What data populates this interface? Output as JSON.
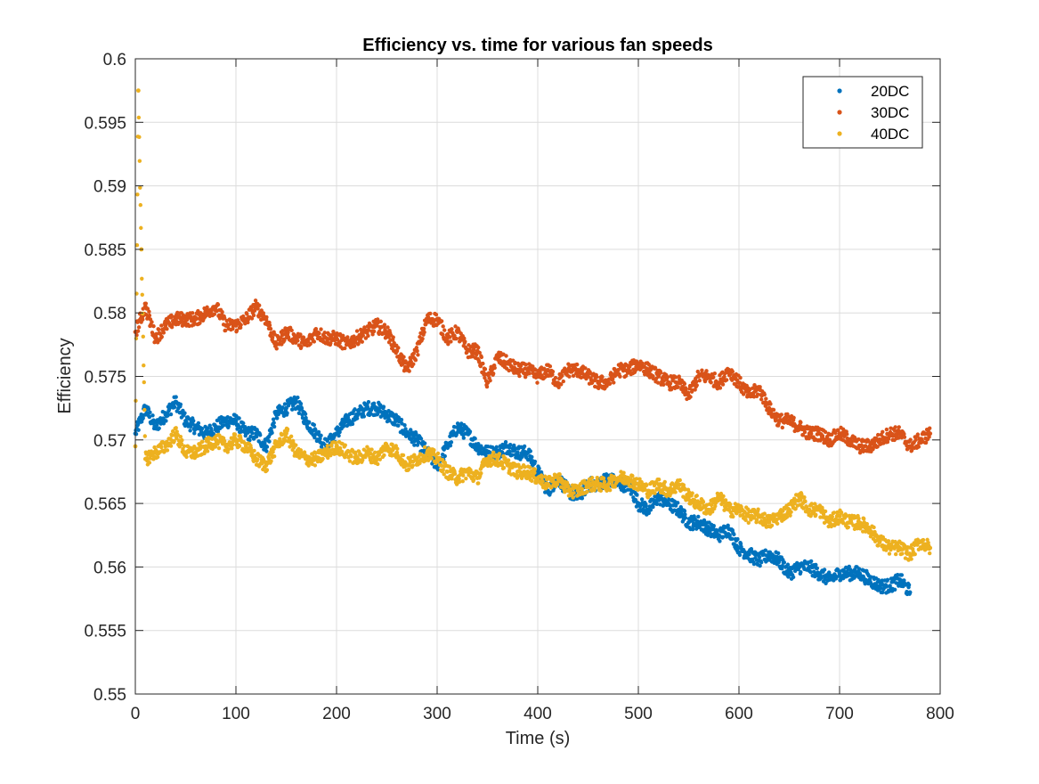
{
  "chart_data": {
    "type": "scatter",
    "title": "Efficiency vs. time for various fan speeds",
    "xlabel": "Time (s)",
    "ylabel": "Efficiency",
    "xlim": [
      0,
      800
    ],
    "ylim": [
      0.55,
      0.6
    ],
    "xticks": [
      0,
      100,
      200,
      300,
      400,
      500,
      600,
      700,
      800
    ],
    "yticks": [
      0.55,
      0.555,
      0.56,
      0.565,
      0.57,
      0.575,
      0.58,
      0.585,
      0.59,
      0.595,
      0.6
    ],
    "x_tick_labels": [
      "0",
      "100",
      "200",
      "300",
      "400",
      "500",
      "600",
      "700",
      "800"
    ],
    "y_tick_labels": [
      "0.55",
      "0.555",
      "0.56",
      "0.565",
      "0.57",
      "0.575",
      "0.58",
      "0.585",
      "0.59",
      "0.595",
      "0.6"
    ],
    "grid": true,
    "legend_position": "top-right",
    "series": [
      {
        "name": "20DC",
        "color": "#0072BD",
        "x": [
          0,
          10,
          20,
          30,
          40,
          50,
          60,
          70,
          80,
          90,
          100,
          110,
          120,
          130,
          140,
          150,
          160,
          170,
          180,
          190,
          200,
          210,
          220,
          230,
          240,
          250,
          260,
          270,
          280,
          290,
          300,
          310,
          320,
          330,
          340,
          350,
          360,
          370,
          380,
          390,
          400,
          410,
          420,
          430,
          440,
          450,
          460,
          470,
          480,
          490,
          500,
          510,
          520,
          530,
          540,
          550,
          560,
          570,
          580,
          590,
          600,
          610,
          620,
          630,
          640,
          650,
          660,
          670,
          680,
          690,
          700,
          710,
          720,
          730,
          740,
          750,
          760,
          770
        ],
        "y": [
          0.5705,
          0.5725,
          0.571,
          0.572,
          0.573,
          0.5715,
          0.571,
          0.5705,
          0.571,
          0.5715,
          0.5715,
          0.5705,
          0.5705,
          0.5695,
          0.572,
          0.5725,
          0.573,
          0.5715,
          0.5705,
          0.5695,
          0.5705,
          0.5715,
          0.572,
          0.5725,
          0.5725,
          0.572,
          0.5715,
          0.5705,
          0.57,
          0.569,
          0.568,
          0.5695,
          0.571,
          0.5705,
          0.5695,
          0.569,
          0.569,
          0.5695,
          0.569,
          0.569,
          0.5675,
          0.566,
          0.567,
          0.566,
          0.5655,
          0.5665,
          0.5665,
          0.567,
          0.5665,
          0.5665,
          0.565,
          0.5645,
          0.5655,
          0.565,
          0.5645,
          0.5635,
          0.5635,
          0.563,
          0.5625,
          0.563,
          0.5615,
          0.561,
          0.5605,
          0.561,
          0.5605,
          0.5595,
          0.56,
          0.56,
          0.5595,
          0.559,
          0.5595,
          0.5595,
          0.5595,
          0.559,
          0.5585,
          0.5585,
          0.559,
          0.558
        ]
      },
      {
        "name": "30DC",
        "color": "#D95319",
        "x": [
          0,
          10,
          20,
          30,
          40,
          50,
          60,
          70,
          80,
          90,
          100,
          110,
          120,
          130,
          140,
          150,
          160,
          170,
          180,
          190,
          200,
          210,
          220,
          230,
          240,
          250,
          260,
          270,
          280,
          290,
          300,
          310,
          320,
          330,
          340,
          350,
          360,
          370,
          380,
          390,
          400,
          410,
          420,
          430,
          440,
          450,
          460,
          470,
          480,
          490,
          500,
          510,
          520,
          530,
          540,
          550,
          560,
          570,
          580,
          590,
          600,
          610,
          620,
          630,
          640,
          650,
          660,
          670,
          680,
          690,
          700,
          710,
          720,
          730,
          740,
          750,
          760,
          770,
          780,
          790
        ],
        "y": [
          0.5785,
          0.5805,
          0.578,
          0.579,
          0.5795,
          0.5795,
          0.5795,
          0.58,
          0.5805,
          0.579,
          0.579,
          0.5795,
          0.5805,
          0.5795,
          0.5775,
          0.5785,
          0.578,
          0.5775,
          0.5785,
          0.578,
          0.578,
          0.5775,
          0.578,
          0.5785,
          0.579,
          0.5785,
          0.577,
          0.5755,
          0.577,
          0.5795,
          0.5795,
          0.578,
          0.5785,
          0.577,
          0.577,
          0.5745,
          0.5765,
          0.576,
          0.5755,
          0.5755,
          0.575,
          0.5755,
          0.5745,
          0.5755,
          0.5755,
          0.575,
          0.5745,
          0.5745,
          0.5755,
          0.5755,
          0.576,
          0.5755,
          0.575,
          0.5745,
          0.5745,
          0.5735,
          0.575,
          0.575,
          0.5745,
          0.5755,
          0.5745,
          0.5735,
          0.574,
          0.5725,
          0.5715,
          0.5715,
          0.571,
          0.5705,
          0.5705,
          0.57,
          0.5705,
          0.57,
          0.5695,
          0.5695,
          0.57,
          0.5705,
          0.5705,
          0.5695,
          0.57,
          0.5705
        ]
      },
      {
        "name": "40DC",
        "color": "#EDB120",
        "x": [
          0,
          3,
          6,
          10,
          20,
          30,
          40,
          50,
          60,
          70,
          80,
          90,
          100,
          110,
          120,
          130,
          140,
          150,
          160,
          170,
          180,
          190,
          200,
          210,
          220,
          230,
          240,
          250,
          260,
          270,
          280,
          290,
          300,
          310,
          320,
          330,
          340,
          350,
          360,
          370,
          380,
          390,
          400,
          410,
          420,
          430,
          440,
          450,
          460,
          470,
          480,
          490,
          500,
          510,
          520,
          530,
          540,
          550,
          560,
          570,
          580,
          590,
          600,
          610,
          620,
          630,
          640,
          650,
          660,
          670,
          680,
          690,
          700,
          710,
          720,
          730,
          740,
          750,
          760,
          770,
          780,
          790
        ],
        "y": [
          0.5695,
          0.5975,
          0.585,
          0.5685,
          0.569,
          0.5695,
          0.5705,
          0.569,
          0.569,
          0.5695,
          0.57,
          0.5695,
          0.57,
          0.5695,
          0.5685,
          0.568,
          0.5695,
          0.5705,
          0.569,
          0.5685,
          0.5685,
          0.569,
          0.5695,
          0.569,
          0.5685,
          0.569,
          0.5685,
          0.5695,
          0.569,
          0.568,
          0.5685,
          0.569,
          0.5685,
          0.5675,
          0.567,
          0.5675,
          0.567,
          0.5685,
          0.5685,
          0.568,
          0.5675,
          0.5675,
          0.567,
          0.5665,
          0.567,
          0.566,
          0.566,
          0.5665,
          0.5665,
          0.5665,
          0.567,
          0.567,
          0.5665,
          0.566,
          0.5665,
          0.566,
          0.5665,
          0.5655,
          0.565,
          0.5645,
          0.5655,
          0.5645,
          0.5645,
          0.564,
          0.564,
          0.5635,
          0.564,
          0.5645,
          0.5655,
          0.5645,
          0.5645,
          0.5635,
          0.564,
          0.5635,
          0.5635,
          0.563,
          0.562,
          0.5615,
          0.5615,
          0.561,
          0.562,
          0.5615
        ]
      }
    ]
  }
}
